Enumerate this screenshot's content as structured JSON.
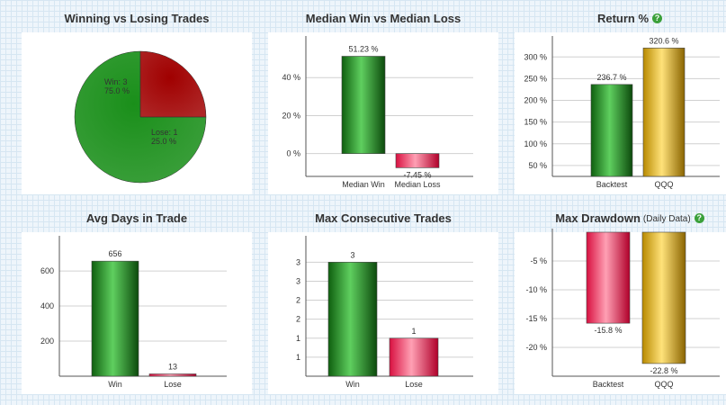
{
  "charts": {
    "win_lose": {
      "title": "Winning vs Losing Trades",
      "chart_data": {
        "type": "pie",
        "slices": [
          {
            "name": "Win",
            "count_label": "Win: 3",
            "pct_label": "75.0 %",
            "value": 75.0,
            "color": "#1a8f1a"
          },
          {
            "name": "Lose",
            "count_label": "Lose: 1",
            "pct_label": "25.0 %",
            "value": 25.0,
            "color": "#a00000"
          }
        ]
      }
    },
    "median": {
      "title": "Median Win vs Median Loss",
      "chart_data": {
        "type": "bar",
        "categories": [
          "Median Win",
          "Median Loss"
        ],
        "values": [
          51.23,
          -7.45
        ],
        "data_labels": [
          "51.23 %",
          "-7.45 %"
        ],
        "ylim": [
          -12,
          60
        ],
        "ticks": [
          0,
          20,
          40
        ],
        "tick_labels": [
          "0 %",
          "20 %",
          "40 %"
        ],
        "colors": [
          "green",
          "red"
        ]
      }
    },
    "return_pct": {
      "title": "Return %",
      "chart_data": {
        "type": "bar",
        "categories": [
          "Backtest",
          "QQQ"
        ],
        "values": [
          236.7,
          320.6
        ],
        "data_labels": [
          "236.7 %",
          "320.6 %"
        ],
        "ylim": [
          25,
          340
        ],
        "ticks": [
          50,
          100,
          150,
          200,
          250,
          300
        ],
        "tick_labels": [
          "50 %",
          "100 %",
          "150 %",
          "200 %",
          "250 %",
          "300 %"
        ],
        "colors": [
          "green",
          "gold"
        ]
      }
    },
    "avg_days": {
      "title": "Avg Days in Trade",
      "chart_data": {
        "type": "bar",
        "categories": [
          "Win",
          "Lose"
        ],
        "values": [
          656,
          13
        ],
        "data_labels": [
          "656",
          "13"
        ],
        "ylim": [
          0,
          780
        ],
        "ticks": [
          200,
          400,
          600
        ],
        "tick_labels": [
          "200",
          "400",
          "600"
        ],
        "colors": [
          "green",
          "red"
        ]
      }
    },
    "max_consec": {
      "title": "Max Consecutive Trades",
      "chart_data": {
        "type": "bar",
        "categories": [
          "Win",
          "Lose"
        ],
        "values": [
          3,
          1
        ],
        "data_labels": [
          "3",
          "1"
        ],
        "ylim": [
          0,
          3.6
        ],
        "ticks": [
          0.5,
          1,
          1.5,
          2,
          2.5,
          3
        ],
        "tick_labels": [
          "1",
          "1",
          "2",
          "2",
          "3",
          "3"
        ],
        "colors": [
          "green",
          "red"
        ]
      }
    },
    "drawdown": {
      "title": "Max Drawdown",
      "subtitle": "(Daily Data)",
      "chart_data": {
        "type": "bar",
        "categories": [
          "Backtest",
          "QQQ"
        ],
        "values": [
          -15.8,
          -22.8
        ],
        "data_labels": [
          "-15.8 %",
          "-22.8 %"
        ],
        "ylim": [
          -25,
          0
        ],
        "ticks": [
          -5,
          -10,
          -15,
          -20
        ],
        "tick_labels": [
          "-5 %",
          "-10 %",
          "-15 %",
          "-20 %"
        ],
        "colors": [
          "red",
          "gold"
        ]
      }
    }
  },
  "help_icon": "question-circle-icon",
  "help_glyph": "?"
}
